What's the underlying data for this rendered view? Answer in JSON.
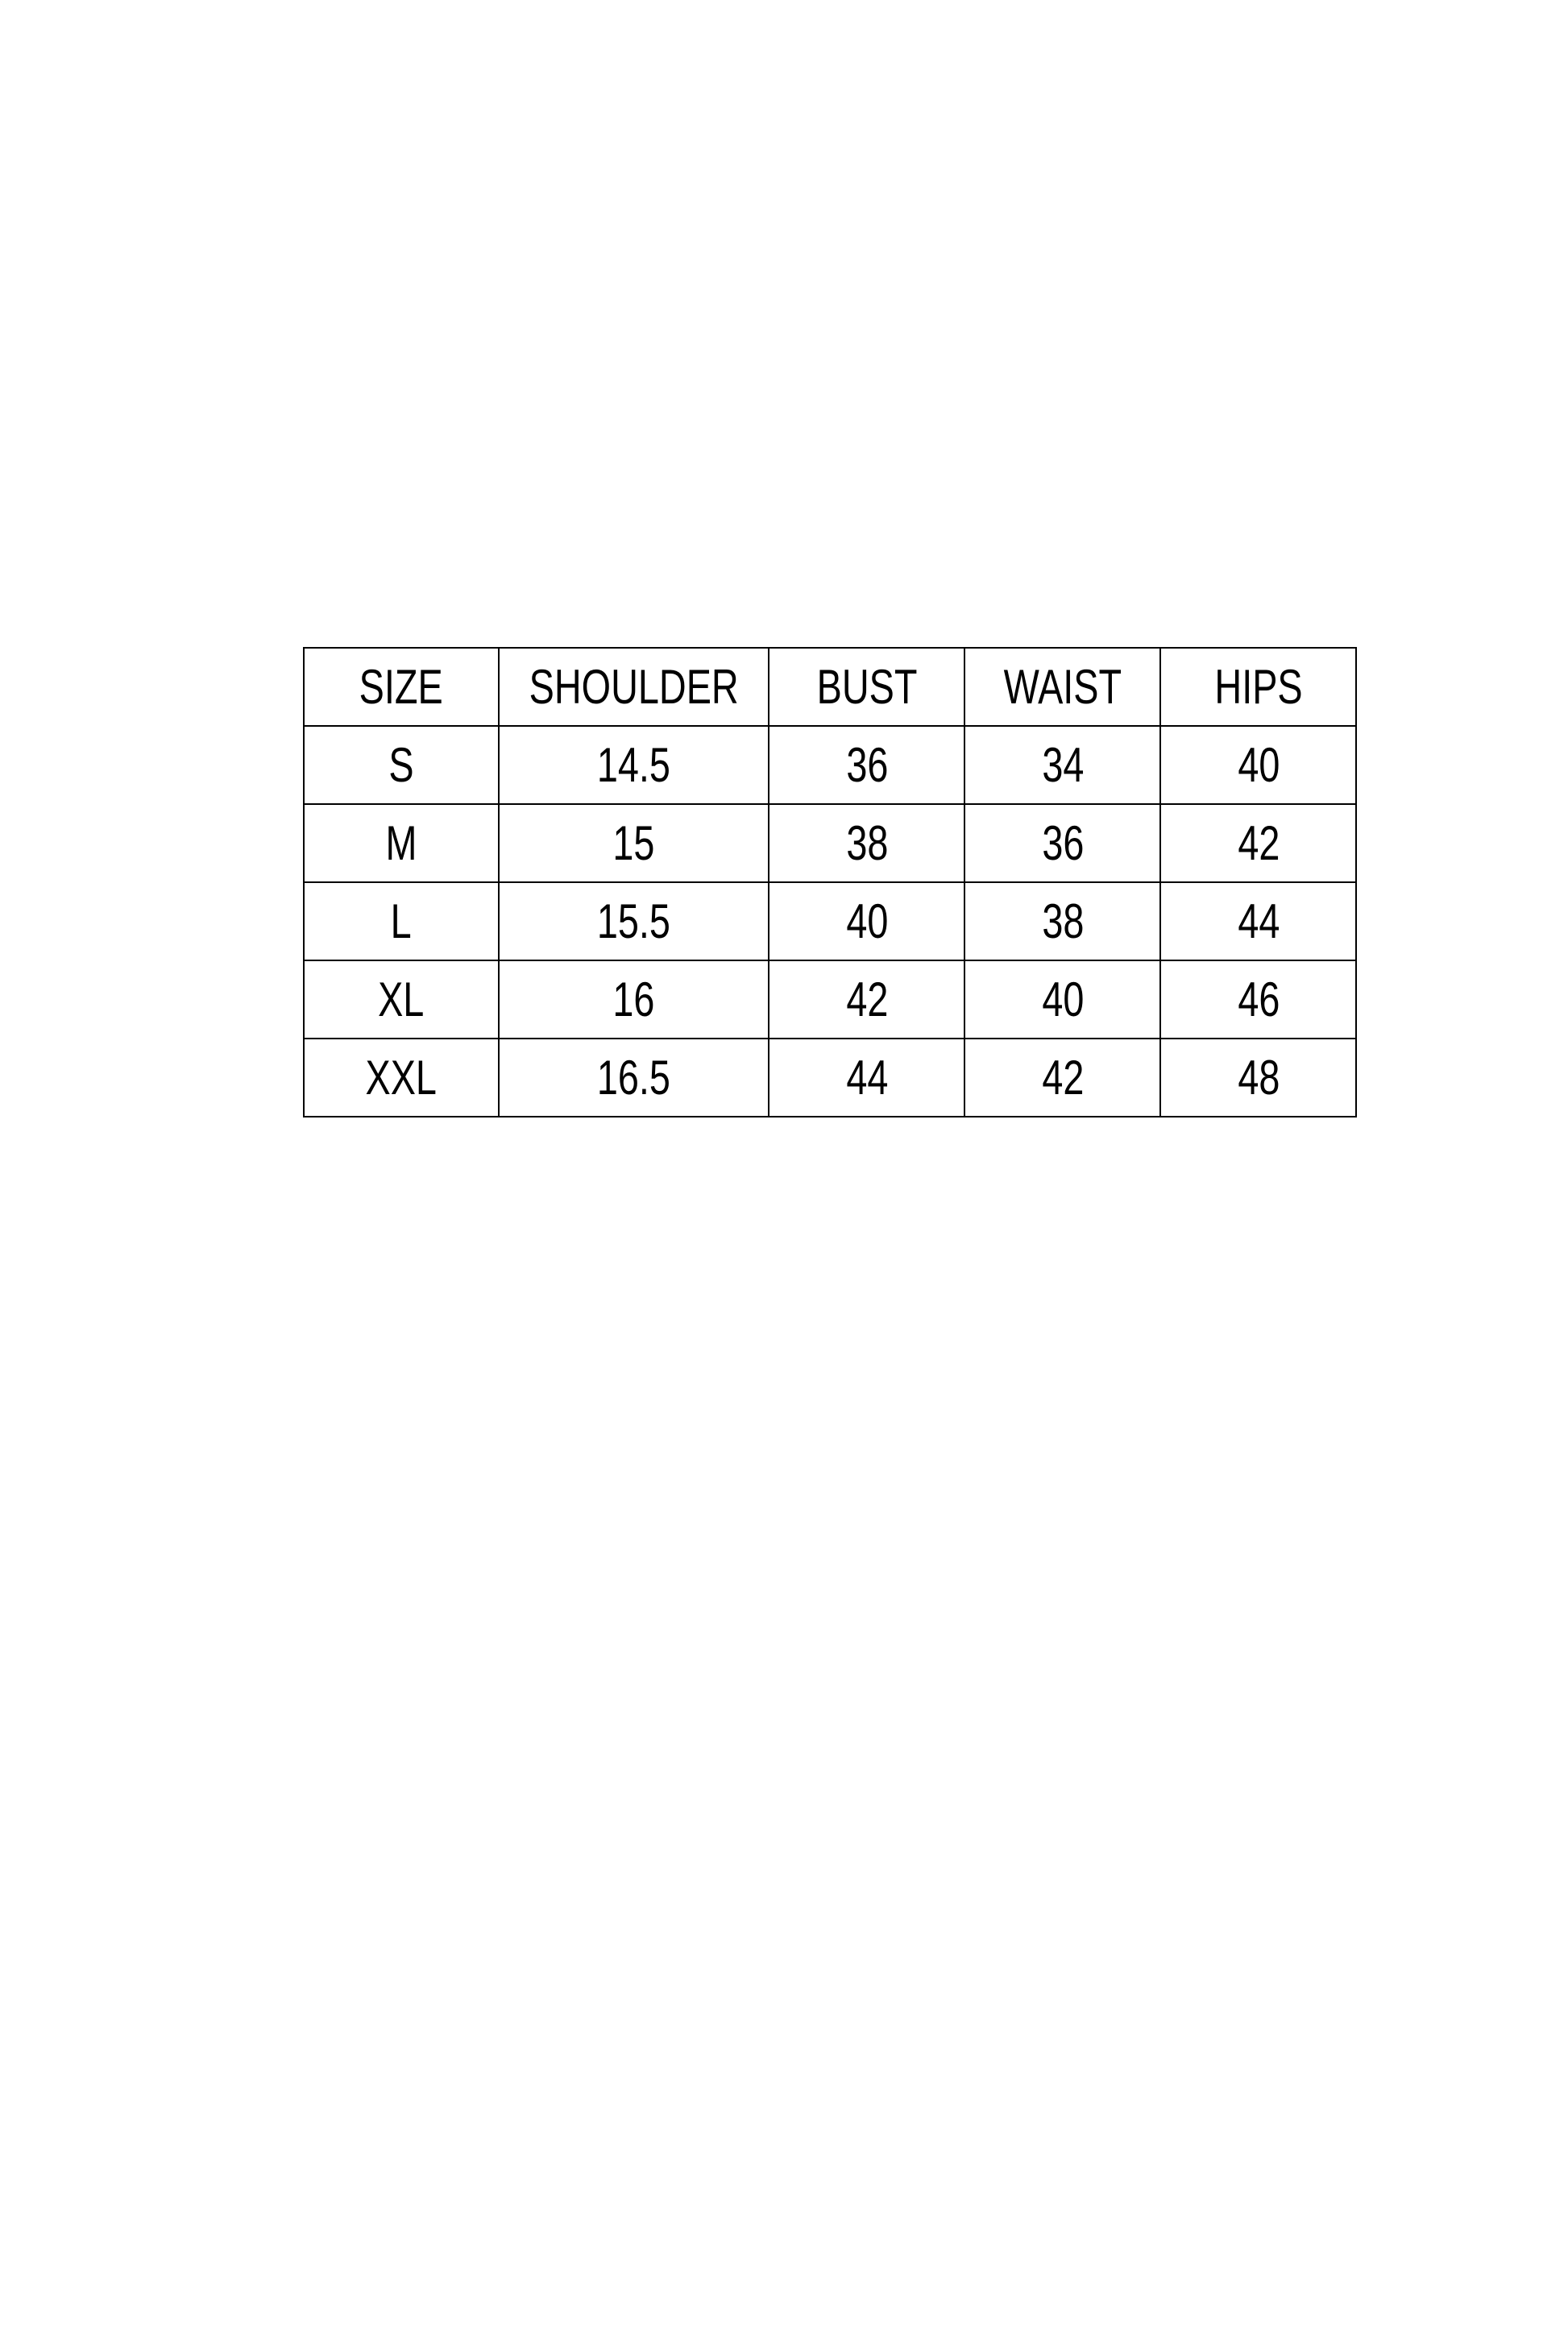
{
  "table": {
    "headers": [
      "SIZE",
      "SHOULDER",
      "BUST",
      "WAIST",
      "HIPS"
    ],
    "rows": [
      [
        "S",
        "14.5",
        "36",
        "34",
        "40"
      ],
      [
        "M",
        "15",
        "38",
        "36",
        "42"
      ],
      [
        "L",
        "15.5",
        "40",
        "38",
        "44"
      ],
      [
        "XL",
        "16",
        "42",
        "40",
        "46"
      ],
      [
        "XXL",
        "16.5",
        "44",
        "42",
        "48"
      ]
    ]
  }
}
